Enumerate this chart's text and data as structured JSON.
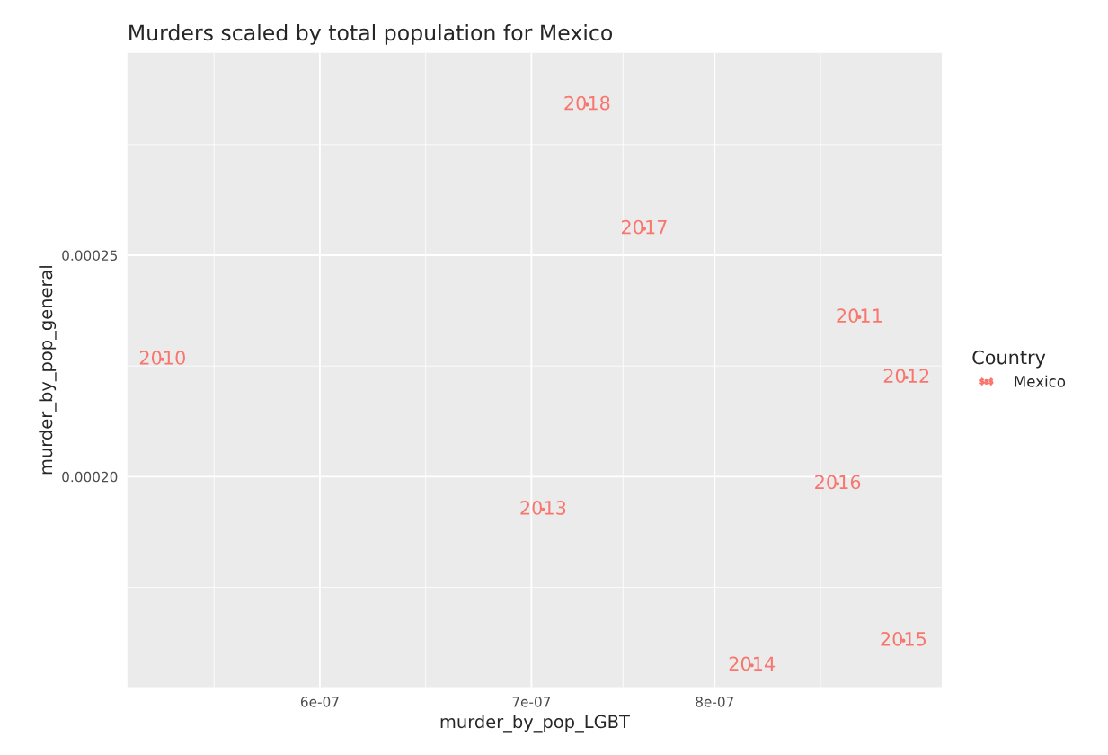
{
  "chart_data": {
    "type": "scatter",
    "title": "Murders scaled by total population for Mexico",
    "xlabel": "murder_by_pop_LGBT",
    "ylabel": "murder_by_pop_general",
    "legend_title": "Country",
    "legend": "right",
    "log": "x",
    "grid": true,
    "marker": "none",
    "xlim": [
      5.215e-07,
      9.44e-07
    ],
    "xticks": [
      {
        "value": 6e-07,
        "label": "6e-07"
      },
      {
        "value": 7e-07,
        "label": "7e-07"
      },
      {
        "value": 8e-07,
        "label": "8e-07"
      }
    ],
    "ylim": [
      0.0001525,
      0.0002957
    ],
    "yticks": [
      {
        "value": 0.0002,
        "label": "0.00020"
      },
      {
        "value": 0.00025,
        "label": "0.00025"
      }
    ],
    "series": [
      {
        "name": "Mexico",
        "color": "#f8766d",
        "x": [
          5.35e-07,
          8.89e-07,
          9.2e-07,
          7.06e-07,
          8.22e-07,
          9.18e-07,
          8.75e-07,
          7.6e-07,
          7.29e-07
        ],
        "values": [
          0.0002265,
          0.000236,
          0.0002224,
          0.0001926,
          0.0001574,
          0.000163,
          0.0001984,
          0.000256,
          0.000284
        ]
      }
    ],
    "annotations": [
      {
        "text": "2010",
        "x": 5.35e-07,
        "y": 0.0002265
      },
      {
        "text": "2011",
        "x": 8.89e-07,
        "y": 0.000236
      },
      {
        "text": "2012",
        "x": 9.2e-07,
        "y": 0.0002224
      },
      {
        "text": "2013",
        "x": 7.06e-07,
        "y": 0.0001926
      },
      {
        "text": "2014",
        "x": 8.22e-07,
        "y": 0.0001574
      },
      {
        "text": "2015",
        "x": 9.18e-07,
        "y": 0.000163
      },
      {
        "text": "2016",
        "x": 8.75e-07,
        "y": 0.0001984
      },
      {
        "text": "2017",
        "x": 7.6e-07,
        "y": 0.000256
      },
      {
        "text": "2018",
        "x": 7.29e-07,
        "y": 0.000284
      }
    ]
  }
}
